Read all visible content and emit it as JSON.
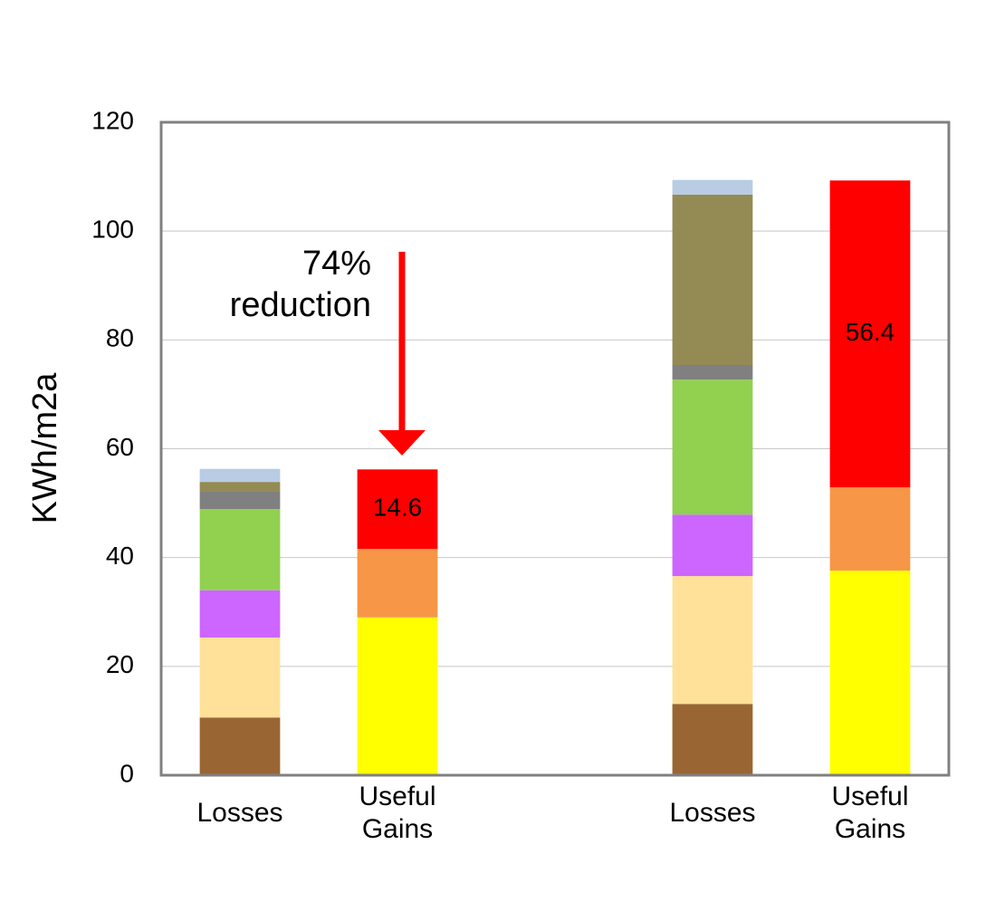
{
  "chart_data": {
    "type": "stacked_bar",
    "y_label": "KWh/m2a",
    "annotation": "74% reduction",
    "categories": [
      "Losses",
      "Useful Gains",
      null,
      "Losses",
      "Useful Gains"
    ],
    "series": [
      {
        "color": "#996633",
        "values": [
          10.6,
          null,
          null,
          13.1,
          null
        ]
      },
      {
        "color": "#ffe199",
        "values": [
          14.7,
          null,
          null,
          23.5,
          null
        ]
      },
      {
        "color": "#cc66ff",
        "values": [
          8.7,
          null,
          null,
          11.3,
          null
        ]
      },
      {
        "color": "#92d050",
        "values": [
          14.9,
          null,
          null,
          24.8,
          null
        ]
      },
      {
        "color": "#808080",
        "values": [
          3.2,
          null,
          null,
          2.7,
          null
        ]
      },
      {
        "color": "#948a54",
        "values": [
          1.8,
          null,
          null,
          31.3,
          null
        ]
      },
      {
        "color": "#b8cce4",
        "values": [
          2.4,
          null,
          null,
          2.7,
          null
        ]
      },
      {
        "color": "#ffff00",
        "values": [
          null,
          29.0,
          null,
          null,
          37.6
        ]
      },
      {
        "color": "#f79646",
        "values": [
          null,
          12.6,
          null,
          null,
          15.3
        ]
      },
      {
        "color": "#ff0000",
        "values": [
          null,
          14.6,
          null,
          null,
          56.4
        ],
        "data_labels": true
      }
    ],
    "ylim": [
      0,
      120
    ],
    "yticks": [
      0,
      20,
      40,
      60,
      80,
      100,
      120
    ],
    "grid": true
  }
}
